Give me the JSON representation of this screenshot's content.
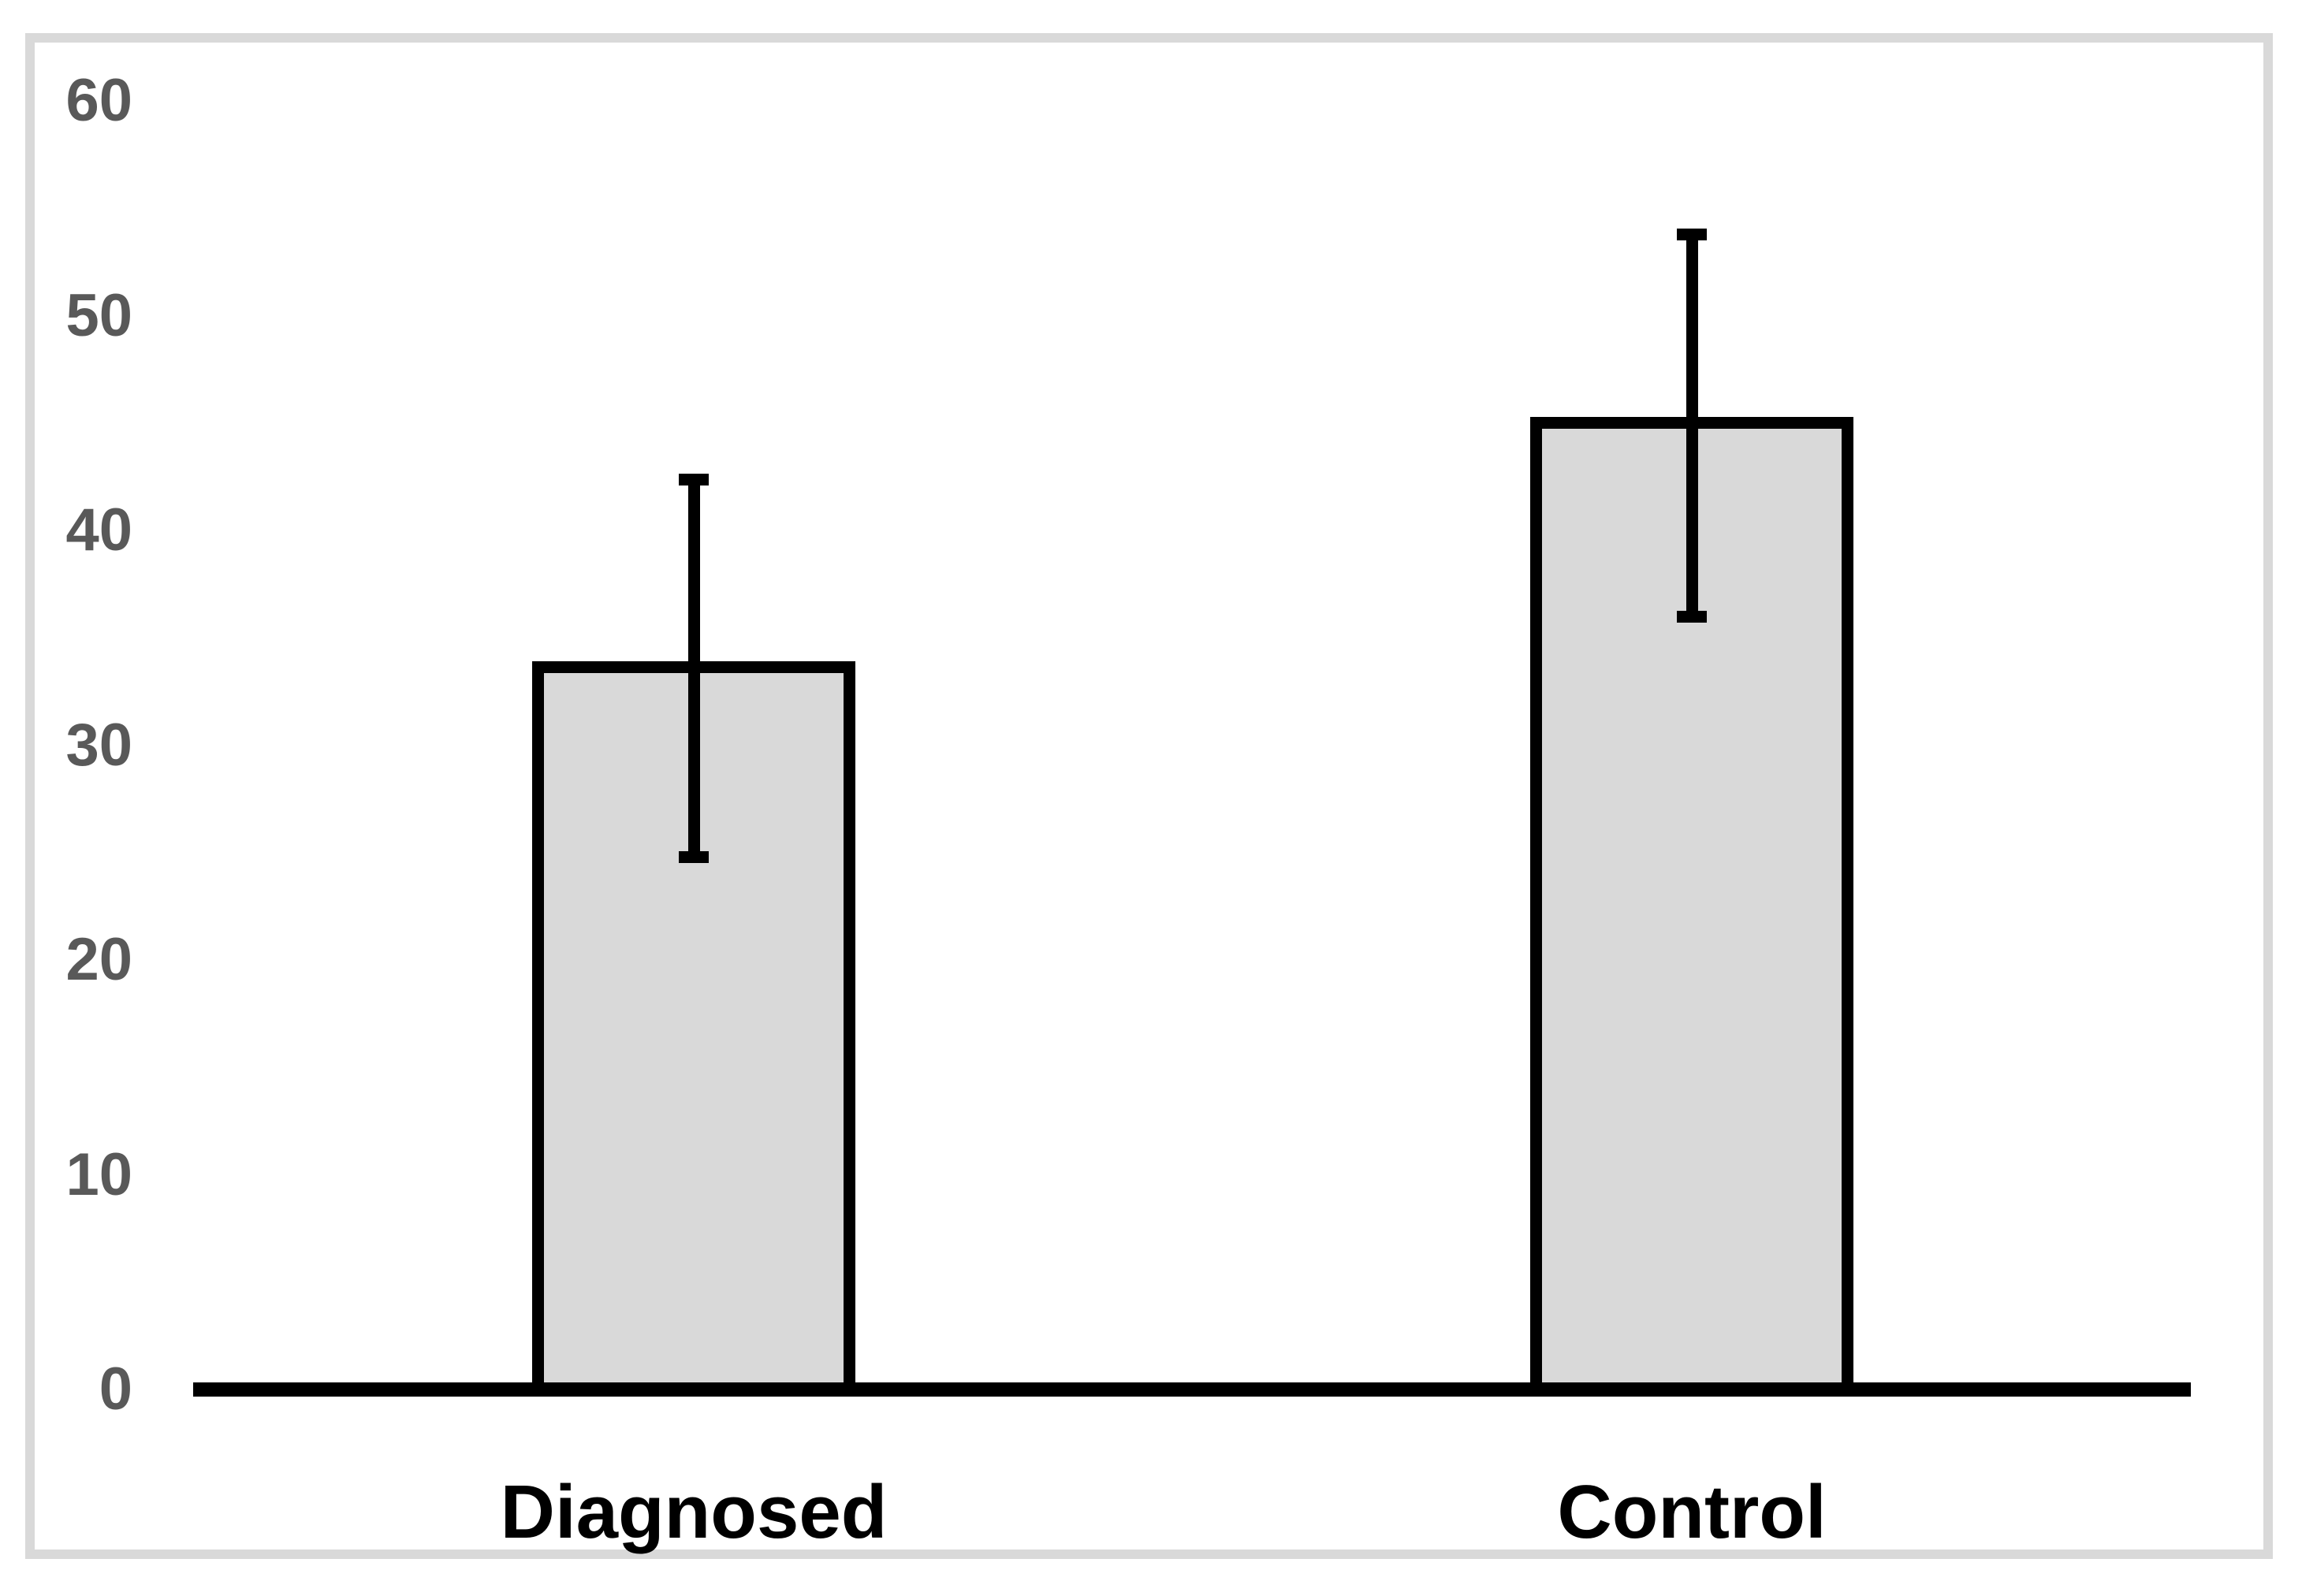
{
  "chart_data": {
    "type": "bar",
    "title": "",
    "xlabel": "",
    "ylabel": "",
    "categories": [
      "Diagnosed",
      "Control"
    ],
    "values": [
      33.9,
      45.3
    ],
    "error_bars": {
      "upper": [
        42.4,
        53.8
      ],
      "lower": [
        24.8,
        36.0
      ]
    },
    "yticks": [
      0,
      10,
      20,
      30,
      40,
      50,
      60
    ],
    "ylim": [
      0,
      60
    ],
    "grid": false,
    "legend": false,
    "colors": {
      "bar_fill": "#d9d9d9",
      "bar_border": "#000000",
      "error_bar": "#000000",
      "axis_line": "#000000",
      "tick_label": "#595959",
      "category_label": "#000000",
      "frame_border": "#d9d9d9",
      "background": "#ffffff"
    }
  }
}
